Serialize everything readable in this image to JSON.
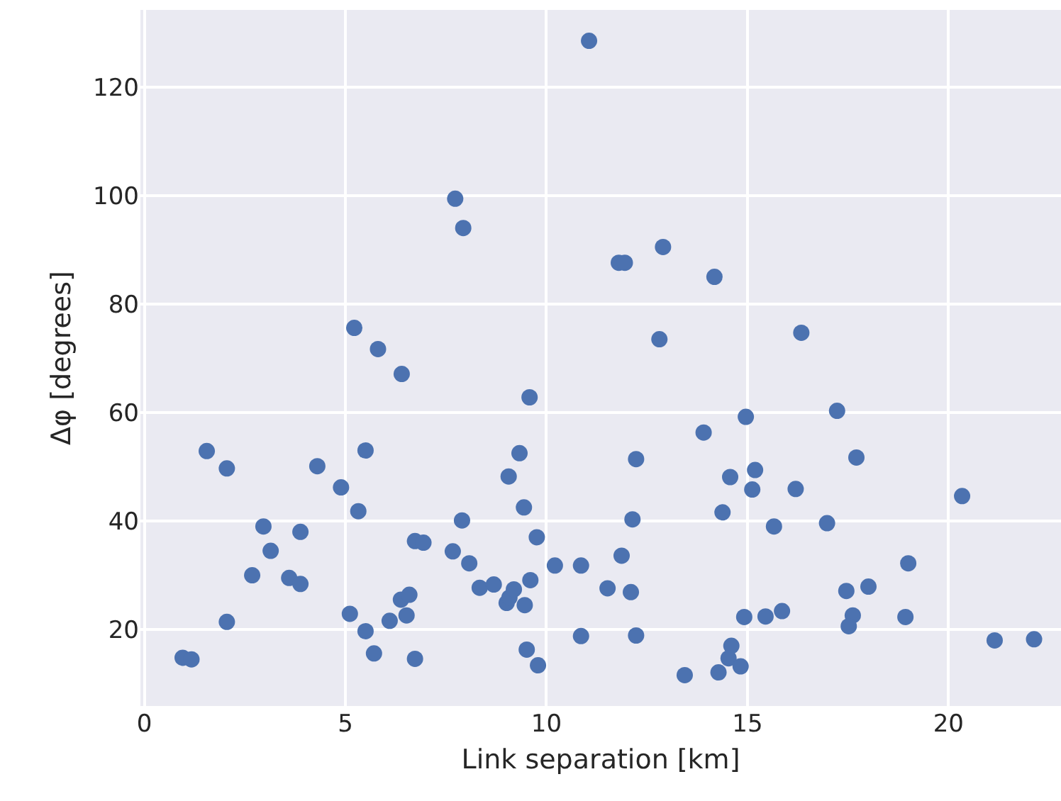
{
  "chart_data": {
    "type": "scatter",
    "xlabel": "Link separation [km]",
    "ylabel": "Δφ [degrees]",
    "x": [
      0.95,
      1.17,
      1.55,
      2.05,
      2.05,
      2.68,
      2.96,
      3.14,
      3.6,
      3.88,
      3.88,
      4.3,
      4.89,
      5.11,
      5.22,
      5.32,
      5.5,
      5.5,
      5.71,
      5.81,
      6.1,
      6.38,
      6.4,
      6.52,
      6.59,
      6.73,
      6.73,
      6.94,
      7.67,
      7.73,
      7.9,
      7.93,
      8.08,
      8.34,
      8.69,
      9.01,
      9.08,
      9.19,
      9.06,
      9.33,
      9.46,
      9.6,
      9.58,
      9.76,
      9.51,
      9.79,
      9.44,
      10.21,
      10.86,
      10.86,
      12.23,
      12.14,
      11.87,
      11.52,
      12.1,
      12.23,
      13.44,
      13.91,
      14.28,
      14.38,
      14.57,
      14.6,
      14.53,
      14.83,
      14.96,
      14.92,
      15.12,
      15.19,
      15.45,
      15.66,
      15.86,
      16.2,
      16.98,
      17.23,
      17.71,
      17.46,
      17.62,
      17.52,
      18.01,
      19.0,
      18.93,
      20.34,
      21.15,
      22.13,
      11.06,
      11.8,
      11.95,
      12.9,
      14.18,
      12.81,
      16.34
    ],
    "values": [
      14.8,
      14.5,
      52.9,
      49.7,
      21.4,
      30.0,
      39.0,
      34.5,
      29.5,
      38.0,
      28.4,
      50.1,
      46.2,
      22.9,
      75.6,
      41.8,
      53.0,
      19.7,
      15.6,
      71.7,
      21.6,
      25.5,
      67.1,
      22.6,
      26.4,
      36.3,
      14.6,
      36.0,
      34.4,
      99.4,
      40.1,
      94.0,
      32.2,
      27.7,
      28.3,
      24.9,
      25.9,
      27.4,
      48.2,
      52.5,
      24.5,
      29.1,
      62.8,
      37.0,
      16.3,
      13.4,
      42.5,
      31.8,
      31.8,
      18.8,
      51.4,
      40.3,
      33.6,
      27.6,
      26.9,
      18.9,
      11.6,
      56.3,
      12.1,
      41.6,
      48.1,
      17.0,
      14.7,
      13.2,
      59.2,
      22.3,
      45.8,
      49.4,
      22.4,
      39.0,
      23.4,
      45.9,
      39.6,
      60.3,
      51.7,
      27.1,
      22.6,
      20.6,
      27.9,
      32.2,
      22.3,
      44.6,
      18.0,
      18.2,
      128.5,
      87.6,
      87.6,
      90.5,
      85.0,
      73.5,
      74.7
    ],
    "color": "#4c72b0",
    "marker": "circle",
    "grid": true,
    "xlim": [
      -0.1,
      22.8
    ],
    "xticks": [
      0,
      5,
      10,
      15,
      20
    ],
    "ylim": [
      5.9,
      134.2
    ],
    "yticks": [
      20,
      40,
      60,
      80,
      100,
      120
    ]
  }
}
